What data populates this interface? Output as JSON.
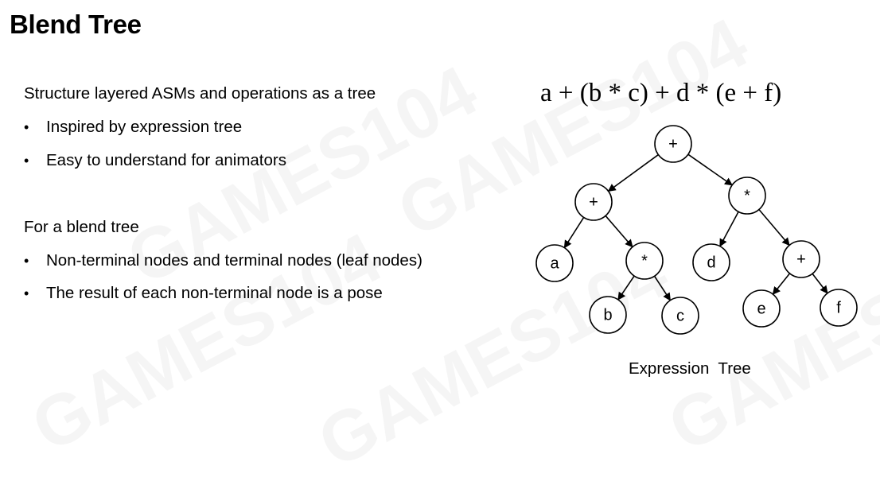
{
  "slide": {
    "title": "Blend Tree",
    "section1": {
      "heading": "Structure layered ASMs and operations as a tree",
      "bullets": [
        "Inspired by expression tree",
        "Easy to understand for animators"
      ]
    },
    "section2": {
      "heading": "For a blend tree",
      "bullets": [
        "Non-terminal nodes and terminal nodes (leaf nodes)",
        "The result of each non-terminal node is a pose"
      ]
    },
    "bullet_glyph": "•"
  },
  "diagram": {
    "formula": "a + (b * c) + d * (e + f)",
    "caption": "Expression  Tree",
    "nodes": [
      {
        "id": "root",
        "label": "+"
      },
      {
        "id": "n_plus_left",
        "label": "+"
      },
      {
        "id": "n_mul_right",
        "label": "*"
      },
      {
        "id": "leaf_a",
        "label": "a"
      },
      {
        "id": "n_mul_bc",
        "label": "*"
      },
      {
        "id": "leaf_d",
        "label": "d"
      },
      {
        "id": "n_plus_ef",
        "label": "+"
      },
      {
        "id": "leaf_b",
        "label": "b"
      },
      {
        "id": "leaf_c",
        "label": "c"
      },
      {
        "id": "leaf_e",
        "label": "e"
      },
      {
        "id": "leaf_f",
        "label": "f"
      }
    ],
    "edges": [
      [
        "root",
        "n_plus_left"
      ],
      [
        "root",
        "n_mul_right"
      ],
      [
        "n_plus_left",
        "leaf_a"
      ],
      [
        "n_plus_left",
        "n_mul_bc"
      ],
      [
        "n_mul_right",
        "leaf_d"
      ],
      [
        "n_mul_right",
        "n_plus_ef"
      ],
      [
        "n_mul_bc",
        "leaf_b"
      ],
      [
        "n_mul_bc",
        "leaf_c"
      ],
      [
        "n_plus_ef",
        "leaf_e"
      ],
      [
        "n_plus_ef",
        "leaf_f"
      ]
    ]
  },
  "watermark": {
    "brand_word": "GAMES104"
  }
}
